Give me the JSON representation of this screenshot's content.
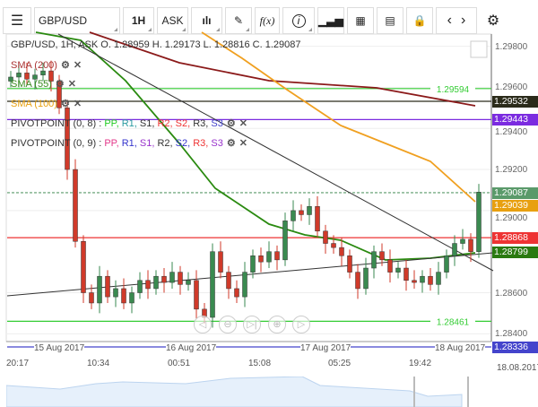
{
  "toolbar": {
    "symbol": "GBP/USD",
    "timeframe": "1H",
    "price_type": "ASK",
    "icons": [
      "menu-icon",
      "candle-type-icon",
      "draw-icon",
      "function-icon",
      "info-icon",
      "bar-chart-icon",
      "calendar-icon",
      "calculator-icon",
      "lock-icon",
      "chevron-left-icon",
      "chevron-right-icon",
      "gear-icon"
    ],
    "fx": "f(x)"
  },
  "legend": {
    "ohlc": "GBP/USD, 1H, ASK   O. 1.28959 H. 1.29173 L. 1.28816 C. 1.29087",
    "sma200": "SMA (200)",
    "sma55": "SMA (55)",
    "sma100": "SMA (100)",
    "pivot8": {
      "name": "PIVOTPOINT (0, 8)",
      "items": [
        "PP",
        "R1",
        "S1",
        "R2",
        "S2",
        "R3",
        "S3"
      ]
    },
    "pivot9": {
      "name": "PIVOTPOINT (0, 9)",
      "items": [
        "PP",
        "R1",
        "S1",
        "R2",
        "S2",
        "R3",
        "S3"
      ]
    }
  },
  "price_axis": [
    "1.29800",
    "1.29600",
    "1.29400",
    "1.29200",
    "1.29000",
    "1.28600",
    "1.28400"
  ],
  "levels": [
    {
      "value": "1.29594",
      "color": "#33cc33",
      "label_inline": true
    },
    {
      "value": "1.29532",
      "color": "#2b2b1a",
      "tag": true
    },
    {
      "value": "1.29443",
      "color": "#7b2be0",
      "tag": true
    },
    {
      "value": "1.29087",
      "color": "#5a9a6a",
      "tag": true,
      "dashed": true
    },
    {
      "value": "1.29039",
      "color": "#e8a010",
      "tag": true,
      "noline": true
    },
    {
      "value": "1.28868",
      "color": "#ee3333",
      "tag": true
    },
    {
      "value": "1.28799",
      "color": "#2a7a10",
      "tag": true,
      "noline": true
    },
    {
      "value": "1.28461",
      "color": "#33cc33",
      "label_inline": true
    },
    {
      "value": "1.28336",
      "color": "#4444cc",
      "tag": true
    }
  ],
  "dates": [
    "15 Aug 2017",
    "16 Aug 2017",
    "17 Aug 2017",
    "18 Aug 2017"
  ],
  "times": [
    "20:17",
    "10:34",
    "00:51",
    "15:08",
    "05:25",
    "19:42",
    "18.08.2017"
  ],
  "colors": {
    "up": "#3a8a50",
    "down": "#d03a2a",
    "sma200": "#8b1a1a",
    "sma100": "#f0a020",
    "sma55": "#2a8a10"
  },
  "closes": [
    1.2965,
    1.2967,
    1.2964,
    1.2966,
    1.2968,
    1.2963,
    1.295,
    1.292,
    1.2885,
    1.286,
    1.2855,
    1.2868,
    1.2858,
    1.2862,
    1.2855,
    1.286,
    1.2866,
    1.2862,
    1.2868,
    1.2865,
    1.287,
    1.2864,
    1.2866,
    1.2852,
    1.2848,
    1.288,
    1.287,
    1.2862,
    1.2858,
    1.287,
    1.2878,
    1.2875,
    1.288,
    1.2876,
    1.2895,
    1.29,
    1.2898,
    1.2902,
    1.289,
    1.2884,
    1.2882,
    1.2878,
    1.287,
    1.2862,
    1.2872,
    1.288,
    1.2876,
    1.287,
    1.2872,
    1.2866,
    1.2865,
    1.2868,
    1.2864,
    1.287,
    1.2878,
    1.2884,
    1.2886,
    1.288,
    1.2909
  ]
}
